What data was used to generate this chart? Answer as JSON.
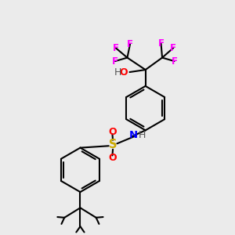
{
  "background_color": "#ebebeb",
  "bond_color": "#000000",
  "colors": {
    "F": "#ff00ff",
    "O": "#ff0000",
    "N": "#0000ff",
    "S": "#ccaa00",
    "H": "#555555",
    "C": "#000000"
  },
  "figsize": [
    3.0,
    3.0
  ],
  "dpi": 100
}
